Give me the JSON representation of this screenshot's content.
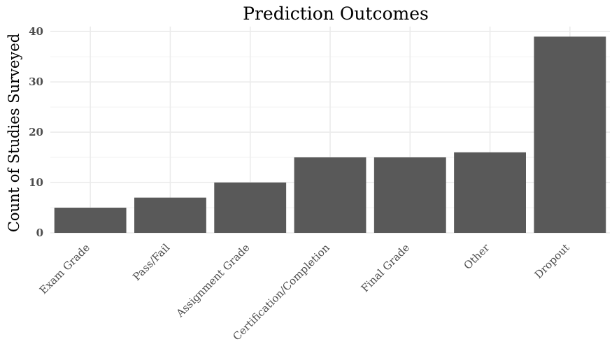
{
  "chart_data": {
    "type": "bar",
    "title": "Prediction Outcomes",
    "xlabel": "",
    "ylabel": "Count of Studies Surveyed",
    "categories": [
      "Exam Grade",
      "Pass/Fail",
      "Assignment Grade",
      "Certification/Completion",
      "Final Grade",
      "Other",
      "Dropout"
    ],
    "values": [
      5,
      7,
      10,
      15,
      15,
      16,
      39
    ],
    "ylim": [
      0,
      41
    ],
    "yticks": [
      0,
      10,
      20,
      30,
      40
    ],
    "grid": true,
    "bar_color": "#595959"
  }
}
